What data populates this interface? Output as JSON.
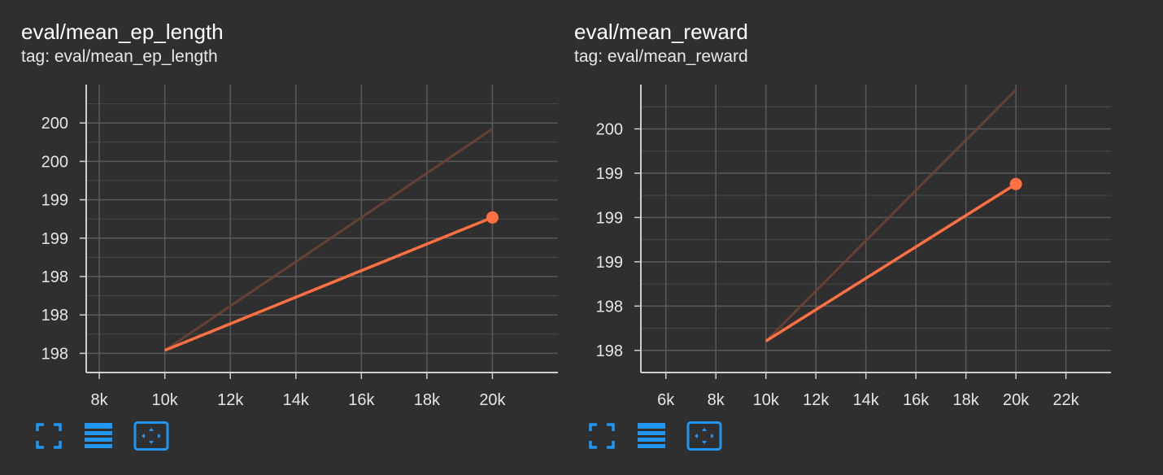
{
  "colors": {
    "background": "#2f2f2f",
    "grid": "#5a5a5a",
    "axis": "#cfcfcf",
    "series": "#ff7043",
    "series_raw": "#6b4436",
    "toolbar_icon": "#2196f3"
  },
  "panels": [
    {
      "title": "eval/mean_ep_length",
      "tag": "tag: eval/mean_ep_length",
      "icons": [
        "fullscreen-icon",
        "data-table-icon",
        "fit-domain-icon"
      ]
    },
    {
      "title": "eval/mean_reward",
      "tag": "tag: eval/mean_reward",
      "icons": [
        "fullscreen-icon",
        "data-table-icon",
        "fit-domain-icon"
      ]
    }
  ],
  "chart_data": [
    {
      "type": "line",
      "title": "eval/mean_ep_length",
      "xlabel": "",
      "ylabel": "",
      "x_ticks": [
        "8k",
        "10k",
        "12k",
        "14k",
        "16k",
        "18k",
        "20k"
      ],
      "y_ticks": [
        "200",
        "200",
        "199",
        "199",
        "198",
        "198",
        "198"
      ],
      "xlim": [
        7600,
        22000
      ],
      "ylim": [
        197.8,
        200.4
      ],
      "grid": true,
      "series": [
        {
          "role": "raw",
          "x": [
            10000,
            20000
          ],
          "y": [
            198.0,
            200.0
          ]
        },
        {
          "role": "smoothed",
          "x": [
            10000,
            20000
          ],
          "y": [
            198.0,
            199.2
          ]
        }
      ]
    },
    {
      "type": "line",
      "title": "eval/mean_reward",
      "xlabel": "",
      "ylabel": "",
      "x_ticks": [
        "6k",
        "8k",
        "10k",
        "12k",
        "14k",
        "16k",
        "18k",
        "20k",
        "22k"
      ],
      "y_ticks": [
        "200",
        "199",
        "199",
        "199",
        "198",
        "198"
      ],
      "xlim": [
        5000,
        23800
      ],
      "ylim": [
        197.8,
        200.55
      ],
      "grid": true,
      "series": [
        {
          "role": "raw",
          "x": [
            10000,
            20000
          ],
          "y": [
            198.1,
            200.5
          ]
        },
        {
          "role": "smoothed",
          "x": [
            10000,
            20000
          ],
          "y": [
            198.1,
            199.6
          ]
        }
      ]
    }
  ]
}
